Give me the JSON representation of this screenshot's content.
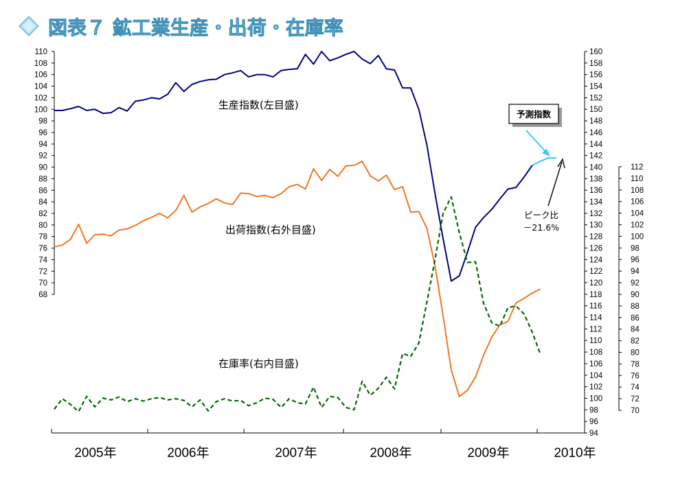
{
  "chart_data": {
    "type": "line",
    "title": "図表７ 鉱工業生産・出荷・在庫率",
    "years": [
      "2005年",
      "2006年",
      "2007年",
      "2008年",
      "2009年",
      "2010年"
    ],
    "axes": {
      "left": {
        "min": 68,
        "max": 110,
        "step": 2
      },
      "right_outer": {
        "min": 94,
        "max": 160,
        "step": 2
      },
      "right_inner": {
        "min": 70,
        "max": 112,
        "step": 2
      }
    },
    "series": [
      {
        "name": "生産指数(左目盛)",
        "axis": "left",
        "color": "#000080",
        "dash": "solid",
        "values": [
          99.8,
          99.8,
          100.1,
          100.5,
          99.8,
          100.0,
          99.3,
          99.4,
          100.3,
          99.7,
          101.4,
          101.6,
          102.0,
          101.8,
          102.6,
          104.6,
          103.1,
          104.3,
          104.8,
          105.1,
          105.2,
          106.0,
          106.3,
          106.7,
          105.6,
          106.0,
          106.0,
          105.6,
          106.7,
          106.9,
          107.0,
          109.5,
          107.8,
          110.0,
          108.4,
          108.9,
          109.5,
          110.0,
          108.7,
          107.9,
          109.3,
          107.0,
          106.8,
          103.7,
          103.7,
          100.0,
          93.8,
          85.4,
          77.6,
          70.3,
          71.2,
          75.3,
          79.6,
          81.3,
          82.7,
          84.5,
          86.2,
          86.5,
          88.3,
          90.3
        ]
      },
      {
        "name": "予測指数",
        "axis": "left",
        "color": "#33ccee",
        "dash": "solid",
        "values": [
          90.3,
          91.0,
          91.6,
          91.6
        ]
      },
      {
        "name": "出荷指数(右外目盛)",
        "axis": "right_outer",
        "color": "#ee7722",
        "dash": "solid",
        "values": [
          126.2,
          126.5,
          127.5,
          130.1,
          126.8,
          128.3,
          128.4,
          128.1,
          129.1,
          129.3,
          129.9,
          130.7,
          131.3,
          132.0,
          131.2,
          132.5,
          135.1,
          132.2,
          133.1,
          133.7,
          134.5,
          133.8,
          133.5,
          135.5,
          135.4,
          134.9,
          135.1,
          134.7,
          135.4,
          136.6,
          137.0,
          136.2,
          139.7,
          137.7,
          139.6,
          138.4,
          140.2,
          140.3,
          141.0,
          138.5,
          137.6,
          138.6,
          136.1,
          136.6,
          132.2,
          132.3,
          129.4,
          122.9,
          114.2,
          104.9,
          100.3,
          101.4,
          103.7,
          107.5,
          110.6,
          112.7,
          113.3,
          116.5,
          117.3,
          118.2,
          118.9
        ]
      },
      {
        "name": "在庫率(右内目盛)",
        "axis": "right_inner",
        "color": "#006600",
        "dash": "dashed",
        "values": [
          70.2,
          72.0,
          71.0,
          69.8,
          72.4,
          70.6,
          72.1,
          71.8,
          72.3,
          71.5,
          72.0,
          71.6,
          72.0,
          72.2,
          71.8,
          72.0,
          71.7,
          70.6,
          71.8,
          69.9,
          71.5,
          72.0,
          71.6,
          71.7,
          70.8,
          71.3,
          72.1,
          71.9,
          70.5,
          72.0,
          71.3,
          71.1,
          74.0,
          70.5,
          72.4,
          72.2,
          70.5,
          70.1,
          75.0,
          72.6,
          73.8,
          75.7,
          73.7,
          79.8,
          79.3,
          81.6,
          88.7,
          96.0,
          104.0,
          106.8,
          100.6,
          95.5,
          95.6,
          88.4,
          85.1,
          84.5,
          87.7,
          88.0,
          86.6,
          83.5,
          79.7
        ]
      }
    ],
    "labels": {
      "production": "生産指数(左目盛)",
      "shipments": "出荷指数(右外目盛)",
      "inventory": "在庫率(右内目盛)"
    },
    "annotations": {
      "forecast": "予測指数",
      "peak_line1": "ピーク比",
      "peak_line2": "－21.6%"
    }
  }
}
